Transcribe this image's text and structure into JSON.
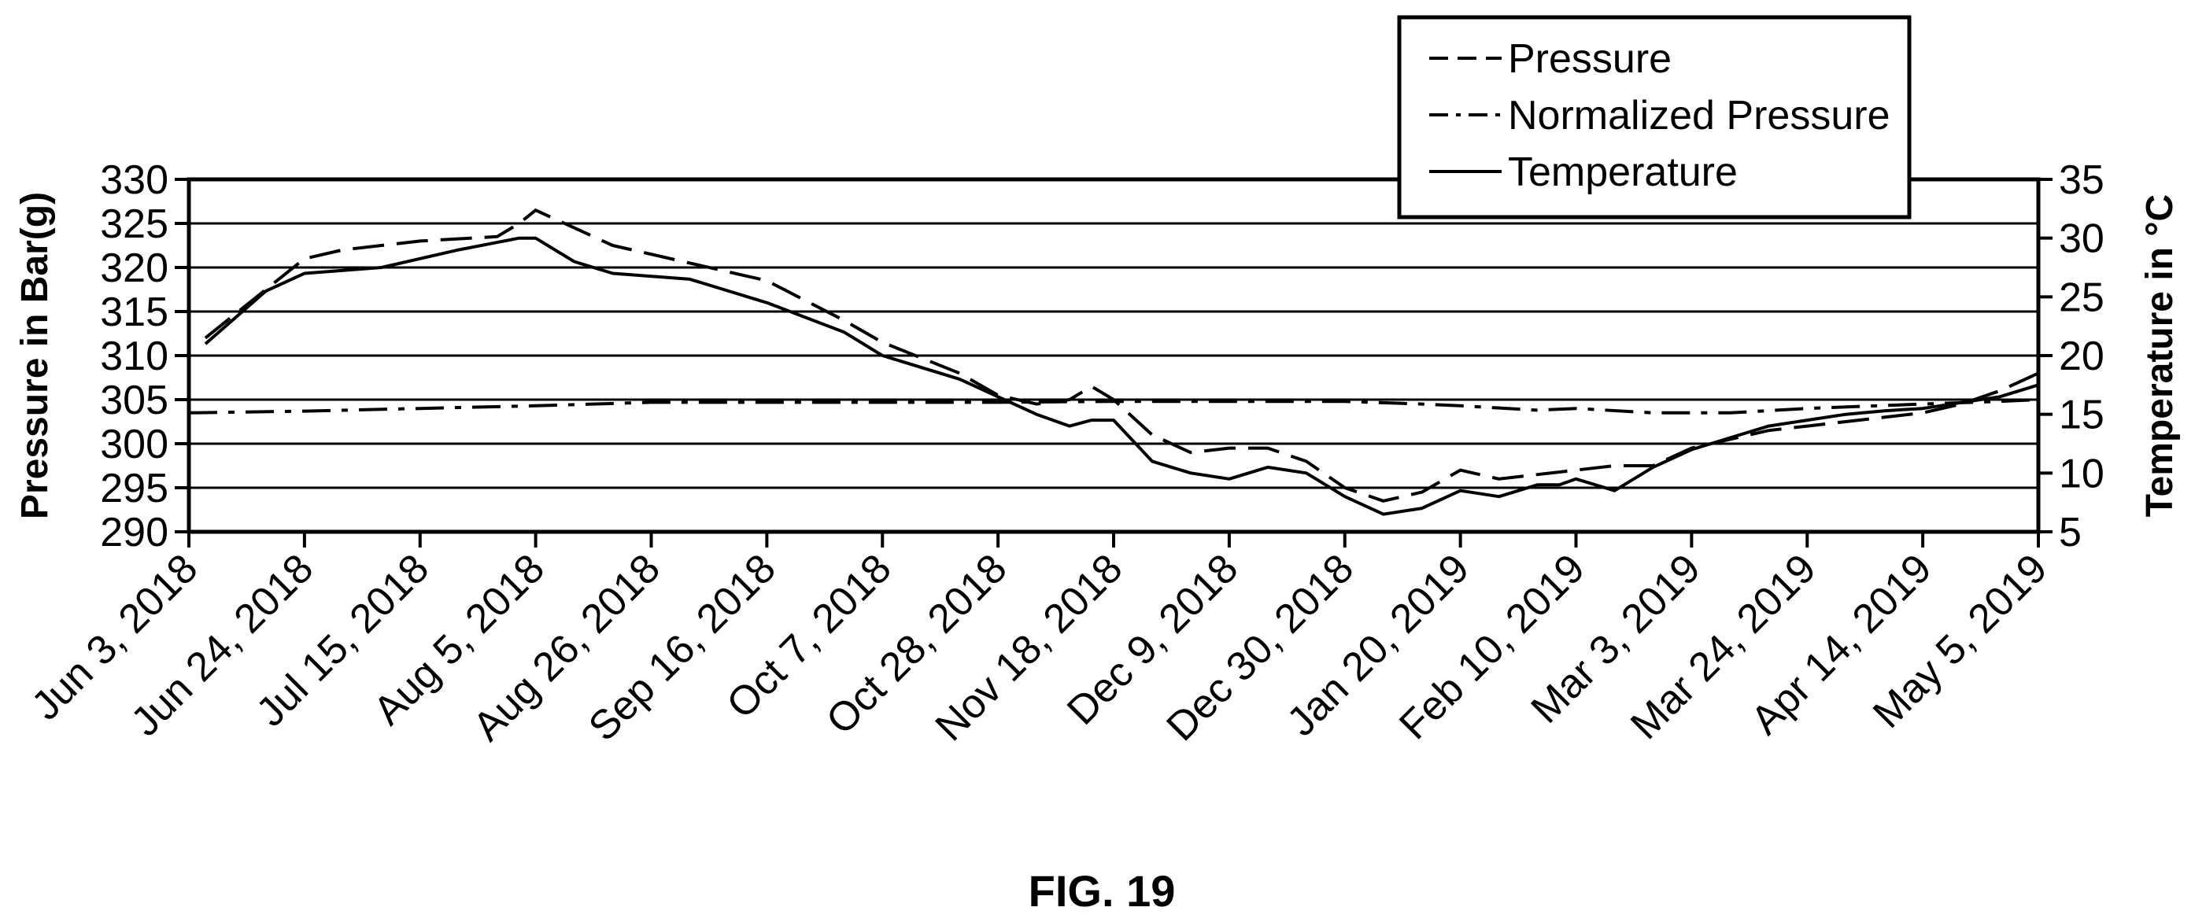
{
  "figure": {
    "caption": "FIG. 19"
  },
  "chart_data": {
    "type": "line",
    "x_type": "date",
    "x_ticks": [
      "2018-06-03",
      "2018-06-24",
      "2018-07-15",
      "2018-08-05",
      "2018-08-26",
      "2018-09-16",
      "2018-10-07",
      "2018-10-28",
      "2018-11-18",
      "2018-12-09",
      "2018-12-30",
      "2019-01-20",
      "2019-02-10",
      "2019-03-03",
      "2019-03-24",
      "2019-04-14",
      "2019-05-05"
    ],
    "x_tick_labels": [
      "Jun 3, 2018",
      "Jun 24, 2018",
      "Jul 15, 2018",
      "Aug 5, 2018",
      "Aug 26, 2018",
      "Sep 16, 2018",
      "Oct 7, 2018",
      "Oct 28, 2018",
      "Nov 18, 2018",
      "Dec 9, 2018",
      "Dec 30, 2018",
      "Jan 20, 2019",
      "Feb 10, 2019",
      "Mar 3, 2019",
      "Mar 24, 2019",
      "Apr 14, 2019",
      "May 5, 2019"
    ],
    "xlim": [
      "2018-06-03",
      "2019-05-05"
    ],
    "ylabel": "Pressure in Bar(g)",
    "ylim": [
      290,
      330
    ],
    "y_ticks": [
      290,
      295,
      300,
      305,
      310,
      315,
      320,
      325,
      330
    ],
    "y2label": "Temperature in °C",
    "y2lim": [
      5,
      35
    ],
    "y2_ticks": [
      5,
      10,
      15,
      20,
      25,
      30,
      35
    ],
    "grid": "horizontal",
    "legend_position": "top-right",
    "series": [
      {
        "name": "Pressure",
        "axis": "left",
        "style": "dashed",
        "x": [
          "2018-06-06",
          "2018-06-17",
          "2018-06-24",
          "2018-07-01",
          "2018-07-15",
          "2018-07-29",
          "2018-08-02",
          "2018-08-05",
          "2018-08-12",
          "2018-08-19",
          "2018-09-02",
          "2018-09-16",
          "2018-09-30",
          "2018-10-07",
          "2018-10-21",
          "2018-10-28",
          "2018-11-04",
          "2018-11-10",
          "2018-11-14",
          "2018-11-18",
          "2018-11-25",
          "2018-12-02",
          "2018-12-09",
          "2018-12-16",
          "2018-12-23",
          "2018-12-30",
          "2019-01-06",
          "2019-01-13",
          "2019-01-20",
          "2019-01-27",
          "2019-02-03",
          "2019-02-10",
          "2019-02-17",
          "2019-02-24",
          "2019-03-03",
          "2019-03-10",
          "2019-03-17",
          "2019-03-24",
          "2019-03-31",
          "2019-04-07",
          "2019-04-14",
          "2019-04-21",
          "2019-04-28",
          "2019-05-05"
        ],
        "y": [
          312,
          317.5,
          321,
          322,
          323,
          323.5,
          325,
          326.5,
          324.5,
          322.5,
          320.5,
          318.5,
          314,
          311.5,
          308,
          305.5,
          304.5,
          305,
          306.5,
          305,
          301,
          299,
          299.5,
          299.5,
          298,
          295,
          293.5,
          294.5,
          297,
          296,
          296.5,
          297,
          297.5,
          297.5,
          299.5,
          300.5,
          301.5,
          302,
          302.5,
          303,
          303.5,
          304.5,
          306,
          308
        ]
      },
      {
        "name": "Normalized Pressure",
        "axis": "left",
        "style": "dashdot",
        "x": [
          "2018-06-03",
          "2018-06-24",
          "2018-07-15",
          "2018-08-05",
          "2018-08-26",
          "2018-09-16",
          "2018-10-07",
          "2018-10-28",
          "2018-11-18",
          "2018-12-09",
          "2018-12-30",
          "2019-01-13",
          "2019-01-20",
          "2019-02-03",
          "2019-02-10",
          "2019-02-24",
          "2019-03-10",
          "2019-03-24",
          "2019-04-14",
          "2019-04-28",
          "2019-05-05"
        ],
        "y": [
          303.5,
          303.7,
          304,
          304.3,
          304.7,
          304.7,
          304.7,
          304.7,
          304.8,
          304.8,
          304.8,
          304.5,
          304.3,
          303.8,
          304,
          303.5,
          303.5,
          304,
          304.5,
          304.8,
          305
        ]
      },
      {
        "name": "Temperature",
        "axis": "right",
        "style": "solid",
        "x": [
          "2018-06-06",
          "2018-06-17",
          "2018-06-24",
          "2018-07-08",
          "2018-07-22",
          "2018-08-02",
          "2018-08-05",
          "2018-08-12",
          "2018-08-19",
          "2018-09-02",
          "2018-09-16",
          "2018-09-30",
          "2018-10-07",
          "2018-10-21",
          "2018-10-28",
          "2018-11-04",
          "2018-11-10",
          "2018-11-14",
          "2018-11-18",
          "2018-11-25",
          "2018-12-02",
          "2018-12-09",
          "2018-12-16",
          "2018-12-23",
          "2018-12-30",
          "2019-01-06",
          "2019-01-13",
          "2019-01-20",
          "2019-01-27",
          "2019-02-03",
          "2019-02-07",
          "2019-02-10",
          "2019-02-17",
          "2019-02-24",
          "2019-03-03",
          "2019-03-10",
          "2019-03-17",
          "2019-03-24",
          "2019-03-31",
          "2019-04-07",
          "2019-04-14",
          "2019-04-21",
          "2019-04-28",
          "2019-05-05"
        ],
        "y": [
          21,
          25.5,
          27,
          27.5,
          29,
          30,
          30,
          28,
          27,
          26.5,
          24.5,
          22,
          20,
          18,
          16.5,
          15,
          14,
          14.5,
          14.5,
          11,
          10,
          9.5,
          10.5,
          10,
          8,
          6.5,
          7,
          8.5,
          8,
          9,
          9,
          9.5,
          8.5,
          10.5,
          12,
          13,
          14,
          14.5,
          15,
          15.3,
          15.5,
          16,
          16.5,
          17.5
        ]
      }
    ]
  }
}
